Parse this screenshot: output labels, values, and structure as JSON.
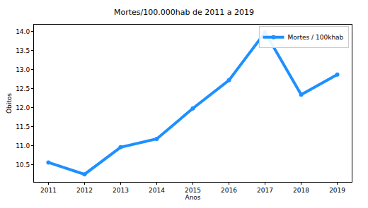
{
  "chart_data": {
    "type": "line",
    "title": "Mortes/100.000hab de 2011 a 2019",
    "x_label": "Anos",
    "y_label": "Óbitos",
    "x": [
      2011,
      2012,
      2013,
      2014,
      2015,
      2016,
      2017,
      2018,
      2019
    ],
    "series": [
      {
        "name": "Mortes / 100khab",
        "color": "#1e90ff",
        "marker": "circle",
        "line_style": "solid",
        "values": [
          10.56,
          10.25,
          10.96,
          11.18,
          11.98,
          12.72,
          13.98,
          12.34,
          12.87
        ]
      }
    ],
    "xlim": [
      2010.6,
      2019.4
    ],
    "xticks": [
      2011,
      2012,
      2013,
      2014,
      2015,
      2016,
      2017,
      2018,
      2019
    ],
    "ylim": [
      10.05,
      14.18
    ],
    "yticks": [
      10.5,
      {
        "value": 11,
        "label": "11.0"
      },
      11.5,
      {
        "value": 12,
        "label": "12.0"
      },
      12.5,
      {
        "value": 13,
        "label": "13.0"
      },
      13.5,
      {
        "value": 14,
        "label": "14.0"
      }
    ],
    "grid": false,
    "legend": "upper right"
  }
}
